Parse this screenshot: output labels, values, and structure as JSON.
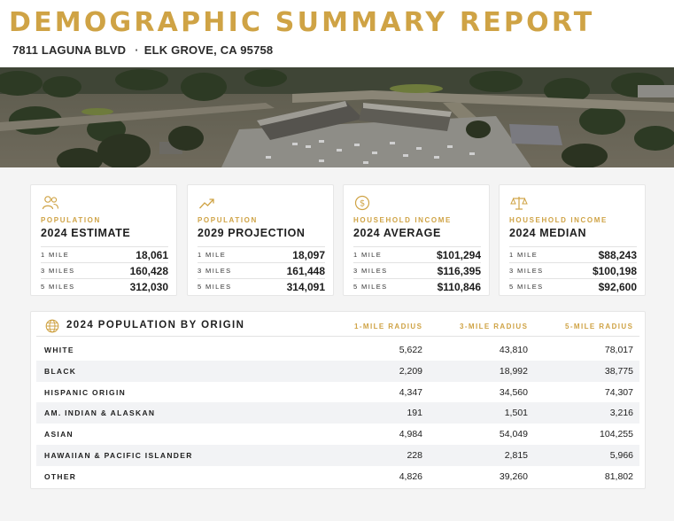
{
  "header": {
    "title": "DEMOGRAPHIC SUMMARY REPORT",
    "address": "7811 LAGUNA BLVD",
    "separator": "·",
    "city": "ELK GROVE, CA 95758"
  },
  "colors": {
    "accent": "#cfa345",
    "text": "#1f1f1f",
    "row_alt": "#f2f3f5"
  },
  "cards": [
    {
      "icon": "people-icon",
      "kicker": "POPULATION",
      "heading": "2024 ESTIMATE",
      "rows": [
        {
          "label": "1 MILE",
          "value": "18,061"
        },
        {
          "label": "3 MILES",
          "value": "160,428"
        },
        {
          "label": "5 MILES",
          "value": "312,030"
        }
      ]
    },
    {
      "icon": "trend-up-icon",
      "kicker": "POPULATION",
      "heading": "2029 PROJECTION",
      "rows": [
        {
          "label": "1 MILE",
          "value": "18,097"
        },
        {
          "label": "3 MILES",
          "value": "161,448"
        },
        {
          "label": "5 MILES",
          "value": "314,091"
        }
      ]
    },
    {
      "icon": "dollar-coin-icon",
      "kicker": "HOUSEHOLD INCOME",
      "heading": "2024 AVERAGE",
      "rows": [
        {
          "label": "1 MILE",
          "value": "$101,294"
        },
        {
          "label": "3 MILES",
          "value": "$116,395"
        },
        {
          "label": "5 MILES",
          "value": "$110,846"
        }
      ]
    },
    {
      "icon": "balance-scale-icon",
      "kicker": "HOUSEHOLD INCOME",
      "heading": "2024 MEDIAN",
      "rows": [
        {
          "label": "1 MILE",
          "value": "$88,243"
        },
        {
          "label": "3 MILES",
          "value": "$100,198"
        },
        {
          "label": "5 MILES",
          "value": "$92,600"
        }
      ]
    }
  ],
  "origin_table": {
    "title": "2024 POPULATION BY ORIGIN",
    "icon": "globe-icon",
    "columns": [
      "1-MILE RADIUS",
      "3-MILE RADIUS",
      "5-MILE RADIUS"
    ],
    "rows": [
      {
        "name": "WHITE",
        "values": [
          "5,622",
          "43,810",
          "78,017"
        ]
      },
      {
        "name": "BLACK",
        "values": [
          "2,209",
          "18,992",
          "38,775"
        ]
      },
      {
        "name": "HISPANIC ORIGIN",
        "values": [
          "4,347",
          "34,560",
          "74,307"
        ]
      },
      {
        "name": "AM. INDIAN & ALASKAN",
        "values": [
          "191",
          "1,501",
          "3,216"
        ]
      },
      {
        "name": "ASIAN",
        "values": [
          "4,984",
          "54,049",
          "104,255"
        ]
      },
      {
        "name": "HAWAIIAN & PACIFIC ISLANDER",
        "values": [
          "228",
          "2,815",
          "5,966"
        ]
      },
      {
        "name": "OTHER",
        "values": [
          "4,826",
          "39,260",
          "81,802"
        ]
      }
    ]
  }
}
